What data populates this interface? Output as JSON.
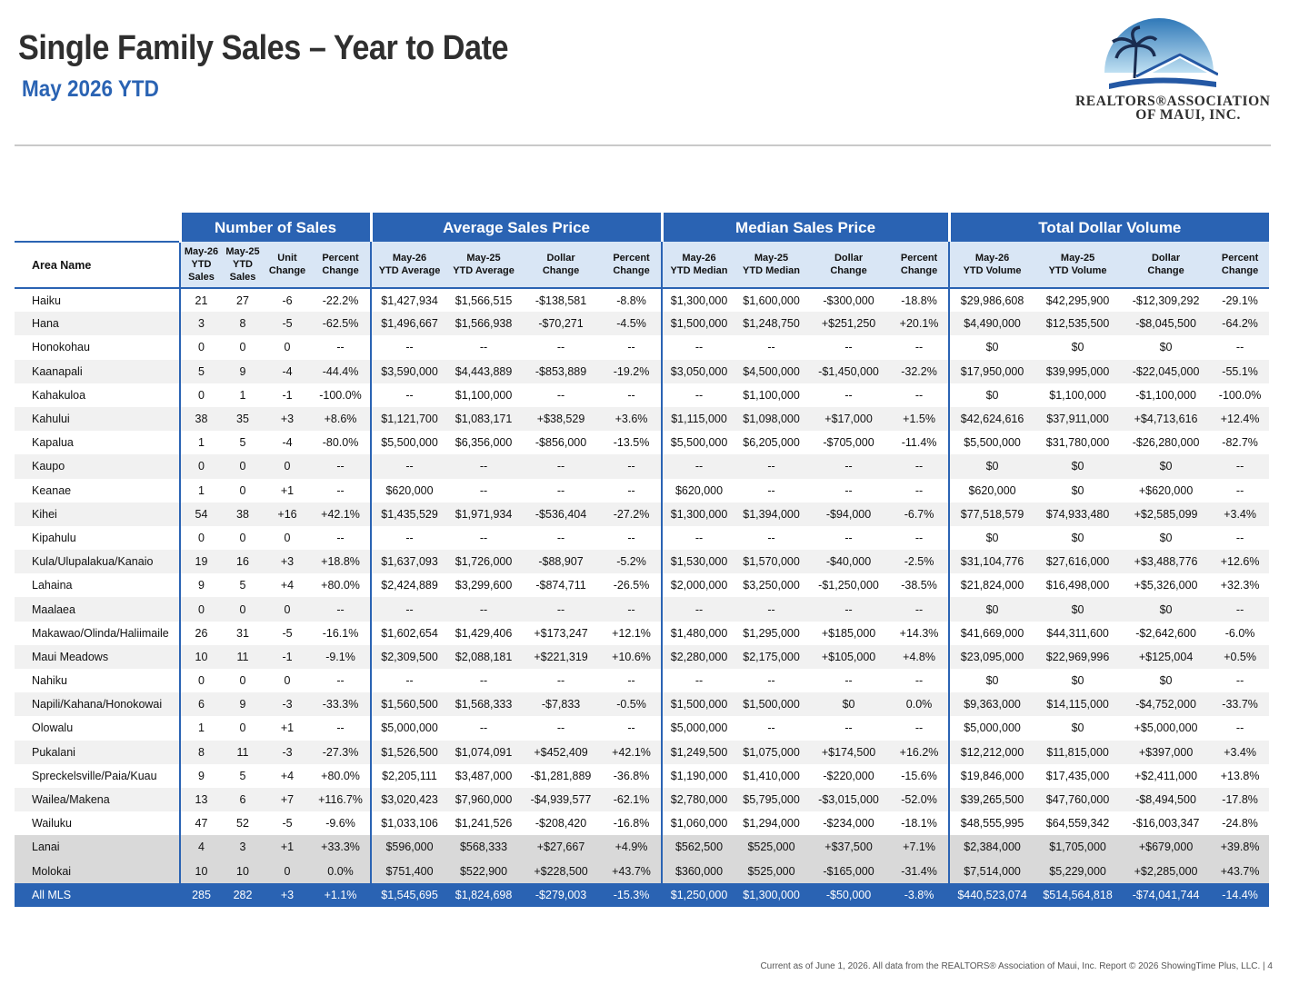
{
  "header": {
    "title": "Single Family Sales – Year to Date",
    "subtitle": "May 2026 YTD"
  },
  "logo": {
    "line1": "REALTORS®ASSOCIATION",
    "line2": "OF MAUI, INC."
  },
  "table": {
    "groups": [
      "Number of Sales",
      "Average Sales Price",
      "Median Sales Price",
      "Total Dollar Volume"
    ],
    "area_header": "Area Name",
    "sub_headers": [
      [
        "May-26",
        "YTD",
        "Sales"
      ],
      [
        "May-25",
        "YTD",
        "Sales"
      ],
      [
        "Unit",
        "Change"
      ],
      [
        "Percent",
        "Change"
      ],
      [
        "May-26",
        "YTD Average"
      ],
      [
        "May-25",
        "YTD Average"
      ],
      [
        "Dollar",
        "Change"
      ],
      [
        "Percent",
        "Change"
      ],
      [
        "May-26",
        "YTD Median"
      ],
      [
        "May-25",
        "YTD Median"
      ],
      [
        "Dollar",
        "Change"
      ],
      [
        "Percent",
        "Change"
      ],
      [
        "May-26",
        "YTD Volume"
      ],
      [
        "May-25",
        "YTD Volume"
      ],
      [
        "Dollar",
        "Change"
      ],
      [
        "Percent",
        "Change"
      ]
    ],
    "rows": [
      [
        "Haiku",
        "21",
        "27",
        "-6",
        "-22.2%",
        "$1,427,934",
        "$1,566,515",
        "-$138,581",
        "-8.8%",
        "$1,300,000",
        "$1,600,000",
        "-$300,000",
        "-18.8%",
        "$29,986,608",
        "$42,295,900",
        "-$12,309,292",
        "-29.1%"
      ],
      [
        "Hana",
        "3",
        "8",
        "-5",
        "-62.5%",
        "$1,496,667",
        "$1,566,938",
        "-$70,271",
        "-4.5%",
        "$1,500,000",
        "$1,248,750",
        "+$251,250",
        "+20.1%",
        "$4,490,000",
        "$12,535,500",
        "-$8,045,500",
        "-64.2%"
      ],
      [
        "Honokohau",
        "0",
        "0",
        "0",
        "--",
        "--",
        "--",
        "--",
        "--",
        "--",
        "--",
        "--",
        "--",
        "$0",
        "$0",
        "$0",
        "--"
      ],
      [
        "Kaanapali",
        "5",
        "9",
        "-4",
        "-44.4%",
        "$3,590,000",
        "$4,443,889",
        "-$853,889",
        "-19.2%",
        "$3,050,000",
        "$4,500,000",
        "-$1,450,000",
        "-32.2%",
        "$17,950,000",
        "$39,995,000",
        "-$22,045,000",
        "-55.1%"
      ],
      [
        "Kahakuloa",
        "0",
        "1",
        "-1",
        "-100.0%",
        "--",
        "$1,100,000",
        "--",
        "--",
        "--",
        "$1,100,000",
        "--",
        "--",
        "$0",
        "$1,100,000",
        "-$1,100,000",
        "-100.0%"
      ],
      [
        "Kahului",
        "38",
        "35",
        "+3",
        "+8.6%",
        "$1,121,700",
        "$1,083,171",
        "+$38,529",
        "+3.6%",
        "$1,115,000",
        "$1,098,000",
        "+$17,000",
        "+1.5%",
        "$42,624,616",
        "$37,911,000",
        "+$4,713,616",
        "+12.4%"
      ],
      [
        "Kapalua",
        "1",
        "5",
        "-4",
        "-80.0%",
        "$5,500,000",
        "$6,356,000",
        "-$856,000",
        "-13.5%",
        "$5,500,000",
        "$6,205,000",
        "-$705,000",
        "-11.4%",
        "$5,500,000",
        "$31,780,000",
        "-$26,280,000",
        "-82.7%"
      ],
      [
        "Kaupo",
        "0",
        "0",
        "0",
        "--",
        "--",
        "--",
        "--",
        "--",
        "--",
        "--",
        "--",
        "--",
        "$0",
        "$0",
        "$0",
        "--"
      ],
      [
        "Keanae",
        "1",
        "0",
        "+1",
        "--",
        "$620,000",
        "--",
        "--",
        "--",
        "$620,000",
        "--",
        "--",
        "--",
        "$620,000",
        "$0",
        "+$620,000",
        "--"
      ],
      [
        "Kihei",
        "54",
        "38",
        "+16",
        "+42.1%",
        "$1,435,529",
        "$1,971,934",
        "-$536,404",
        "-27.2%",
        "$1,300,000",
        "$1,394,000",
        "-$94,000",
        "-6.7%",
        "$77,518,579",
        "$74,933,480",
        "+$2,585,099",
        "+3.4%"
      ],
      [
        "Kipahulu",
        "0",
        "0",
        "0",
        "--",
        "--",
        "--",
        "--",
        "--",
        "--",
        "--",
        "--",
        "--",
        "$0",
        "$0",
        "$0",
        "--"
      ],
      [
        "Kula/Ulupalakua/Kanaio",
        "19",
        "16",
        "+3",
        "+18.8%",
        "$1,637,093",
        "$1,726,000",
        "-$88,907",
        "-5.2%",
        "$1,530,000",
        "$1,570,000",
        "-$40,000",
        "-2.5%",
        "$31,104,776",
        "$27,616,000",
        "+$3,488,776",
        "+12.6%"
      ],
      [
        "Lahaina",
        "9",
        "5",
        "+4",
        "+80.0%",
        "$2,424,889",
        "$3,299,600",
        "-$874,711",
        "-26.5%",
        "$2,000,000",
        "$3,250,000",
        "-$1,250,000",
        "-38.5%",
        "$21,824,000",
        "$16,498,000",
        "+$5,326,000",
        "+32.3%"
      ],
      [
        "Maalaea",
        "0",
        "0",
        "0",
        "--",
        "--",
        "--",
        "--",
        "--",
        "--",
        "--",
        "--",
        "--",
        "$0",
        "$0",
        "$0",
        "--"
      ],
      [
        "Makawao/Olinda/Haliimaile",
        "26",
        "31",
        "-5",
        "-16.1%",
        "$1,602,654",
        "$1,429,406",
        "+$173,247",
        "+12.1%",
        "$1,480,000",
        "$1,295,000",
        "+$185,000",
        "+14.3%",
        "$41,669,000",
        "$44,311,600",
        "-$2,642,600",
        "-6.0%"
      ],
      [
        "Maui Meadows",
        "10",
        "11",
        "-1",
        "-9.1%",
        "$2,309,500",
        "$2,088,181",
        "+$221,319",
        "+10.6%",
        "$2,280,000",
        "$2,175,000",
        "+$105,000",
        "+4.8%",
        "$23,095,000",
        "$22,969,996",
        "+$125,004",
        "+0.5%"
      ],
      [
        "Nahiku",
        "0",
        "0",
        "0",
        "--",
        "--",
        "--",
        "--",
        "--",
        "--",
        "--",
        "--",
        "--",
        "$0",
        "$0",
        "$0",
        "--"
      ],
      [
        "Napili/Kahana/Honokowai",
        "6",
        "9",
        "-3",
        "-33.3%",
        "$1,560,500",
        "$1,568,333",
        "-$7,833",
        "-0.5%",
        "$1,500,000",
        "$1,500,000",
        "$0",
        "0.0%",
        "$9,363,000",
        "$14,115,000",
        "-$4,752,000",
        "-33.7%"
      ],
      [
        "Olowalu",
        "1",
        "0",
        "+1",
        "--",
        "$5,000,000",
        "--",
        "--",
        "--",
        "$5,000,000",
        "--",
        "--",
        "--",
        "$5,000,000",
        "$0",
        "+$5,000,000",
        "--"
      ],
      [
        "Pukalani",
        "8",
        "11",
        "-3",
        "-27.3%",
        "$1,526,500",
        "$1,074,091",
        "+$452,409",
        "+42.1%",
        "$1,249,500",
        "$1,075,000",
        "+$174,500",
        "+16.2%",
        "$12,212,000",
        "$11,815,000",
        "+$397,000",
        "+3.4%"
      ],
      [
        "Spreckelsville/Paia/Kuau",
        "9",
        "5",
        "+4",
        "+80.0%",
        "$2,205,111",
        "$3,487,000",
        "-$1,281,889",
        "-36.8%",
        "$1,190,000",
        "$1,410,000",
        "-$220,000",
        "-15.6%",
        "$19,846,000",
        "$17,435,000",
        "+$2,411,000",
        "+13.8%"
      ],
      [
        "Wailea/Makena",
        "13",
        "6",
        "+7",
        "+116.7%",
        "$3,020,423",
        "$7,960,000",
        "-$4,939,577",
        "-62.1%",
        "$2,780,000",
        "$5,795,000",
        "-$3,015,000",
        "-52.0%",
        "$39,265,500",
        "$47,760,000",
        "-$8,494,500",
        "-17.8%"
      ],
      [
        "Wailuku",
        "47",
        "52",
        "-5",
        "-9.6%",
        "$1,033,106",
        "$1,241,526",
        "-$208,420",
        "-16.8%",
        "$1,060,000",
        "$1,294,000",
        "-$234,000",
        "-18.1%",
        "$48,555,995",
        "$64,559,342",
        "-$16,003,347",
        "-24.8%"
      ],
      [
        "Lanai",
        "4",
        "3",
        "+1",
        "+33.3%",
        "$596,000",
        "$568,333",
        "+$27,667",
        "+4.9%",
        "$562,500",
        "$525,000",
        "+$37,500",
        "+7.1%",
        "$2,384,000",
        "$1,705,000",
        "+$679,000",
        "+39.8%"
      ],
      [
        "Molokai",
        "10",
        "10",
        "0",
        "0.0%",
        "$751,400",
        "$522,900",
        "+$228,500",
        "+43.7%",
        "$360,000",
        "$525,000",
        "-$165,000",
        "-31.4%",
        "$7,514,000",
        "$5,229,000",
        "+$2,285,000",
        "+43.7%"
      ],
      [
        "All MLS",
        "285",
        "282",
        "+3",
        "+1.1%",
        "$1,545,695",
        "$1,824,698",
        "-$279,003",
        "-15.3%",
        "$1,250,000",
        "$1,300,000",
        "-$50,000",
        "-3.8%",
        "$440,523,074",
        "$514,564,818",
        "-$74,041,744",
        "-14.4%"
      ]
    ],
    "row_styles": [
      "plain",
      "alt",
      "plain",
      "alt",
      "plain",
      "alt",
      "plain",
      "alt",
      "plain",
      "alt",
      "plain",
      "alt",
      "plain",
      "alt",
      "plain",
      "alt",
      "plain",
      "alt",
      "plain",
      "alt",
      "plain",
      "alt",
      "plain",
      "gray",
      "gray",
      "total"
    ]
  },
  "footer": {
    "text": "Current as of June 1, 2026. All data from the REALTORS® Association of Maui, Inc. Report © 2026 ShowingTime Plus, LLC.  |  4"
  },
  "colors": {
    "accent": "#2a63b3",
    "subheader_bg": "#d9e6f5",
    "alt_row": "#f1f1f1",
    "island_row": "#d9d9d9"
  }
}
